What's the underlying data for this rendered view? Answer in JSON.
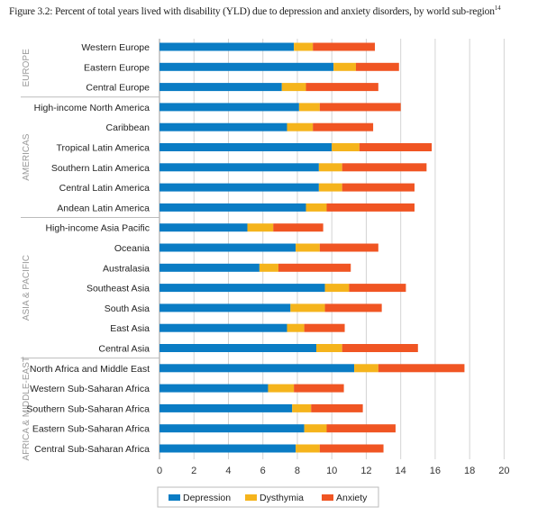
{
  "chart_data": {
    "type": "bar",
    "orientation": "horizontal",
    "stacked": true,
    "title": "Figure 3.2: Percent of total years lived with disability (YLD) due to depression and anxiety disorders, by world sub-region",
    "title_superscript": "14",
    "xlabel": "",
    "ylabel": "",
    "xlim": [
      0,
      20
    ],
    "xticks": [
      0,
      2,
      4,
      6,
      8,
      10,
      12,
      14,
      16,
      18,
      20
    ],
    "grid": true,
    "legend_position": "bottom-left",
    "groups": [
      {
        "name": "EUROPE",
        "start": 0,
        "end": 2
      },
      {
        "name": "AMERICAS",
        "start": 3,
        "end": 8
      },
      {
        "name": "ASIA & PACIFIC",
        "start": 9,
        "end": 15
      },
      {
        "name": "AFRICA & MIDDLE-EAST",
        "start": 16,
        "end": 20
      }
    ],
    "categories": [
      "Western Europe",
      "Eastern Europe",
      "Central Europe",
      "High-income North America",
      "Caribbean",
      "Tropical Latin America",
      "Southern Latin America",
      "Central Latin America",
      "Andean Latin America",
      "High-income Asia Pacific",
      "Oceania",
      "Australasia",
      "Southeast Asia",
      "South Asia",
      "East Asia",
      "Central Asia",
      "North Africa and Middle East",
      "Western Sub-Saharan Africa",
      "Southern Sub-Saharan Africa",
      "Eastern Sub-Saharan Africa",
      "Central Sub-Saharan Africa"
    ],
    "series": [
      {
        "name": "Depression",
        "color": "#0a7cc4",
        "values": [
          7.8,
          10.1,
          7.1,
          8.1,
          7.4,
          10.0,
          9.25,
          9.25,
          8.5,
          5.1,
          7.9,
          5.8,
          9.6,
          7.6,
          7.4,
          9.1,
          11.3,
          6.3,
          7.7,
          8.4,
          7.9
        ]
      },
      {
        "name": "Dysthymia",
        "color": "#f5b41c",
        "values": [
          1.1,
          1.3,
          1.4,
          1.2,
          1.5,
          1.6,
          1.35,
          1.35,
          1.2,
          1.5,
          1.4,
          1.1,
          1.4,
          2.0,
          1.0,
          1.5,
          1.4,
          1.5,
          1.1,
          1.3,
          1.4
        ]
      },
      {
        "name": "Anxiety",
        "color": "#f05523",
        "values": [
          3.6,
          2.5,
          4.2,
          4.7,
          3.5,
          4.2,
          4.9,
          4.2,
          5.1,
          2.9,
          3.4,
          4.2,
          3.3,
          3.3,
          2.35,
          4.4,
          5.0,
          2.9,
          3.0,
          4.0,
          3.7
        ]
      }
    ]
  }
}
